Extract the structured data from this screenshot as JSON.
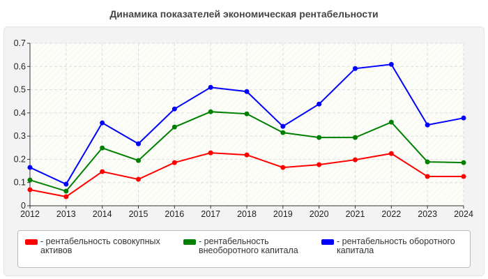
{
  "chart_data": {
    "type": "line",
    "title": "Динамика показателей экономическая рентабельности",
    "xlabel": "",
    "ylabel": "",
    "x": [
      "2012",
      "2013",
      "2014",
      "2015",
      "2016",
      "2017",
      "2018",
      "2019",
      "2020",
      "2021",
      "2022",
      "2023",
      "2024"
    ],
    "yticks": [
      "0",
      "0.1",
      "0.2",
      "0.3",
      "0.4",
      "0.5",
      "0.6",
      "0.7"
    ],
    "ylim": [
      0,
      0.7
    ],
    "grid": true,
    "legend_position": "bottom",
    "series": [
      {
        "name": "- рентабельность совокупных активов",
        "color": "#ff0000",
        "values": [
          0.069,
          0.039,
          0.147,
          0.114,
          0.186,
          0.228,
          0.219,
          0.165,
          0.177,
          0.198,
          0.225,
          0.126,
          0.126
        ]
      },
      {
        "name": "- рентабельность внеоборотного капитала",
        "color": "#008000",
        "values": [
          0.111,
          0.063,
          0.249,
          0.195,
          0.339,
          0.405,
          0.396,
          0.315,
          0.294,
          0.294,
          0.36,
          0.189,
          0.186
        ]
      },
      {
        "name": "- рентабельность оборотного капитала",
        "color": "#0000ff",
        "values": [
          0.165,
          0.093,
          0.357,
          0.267,
          0.417,
          0.51,
          0.492,
          0.342,
          0.438,
          0.591,
          0.609,
          0.348,
          0.378
        ]
      }
    ]
  }
}
